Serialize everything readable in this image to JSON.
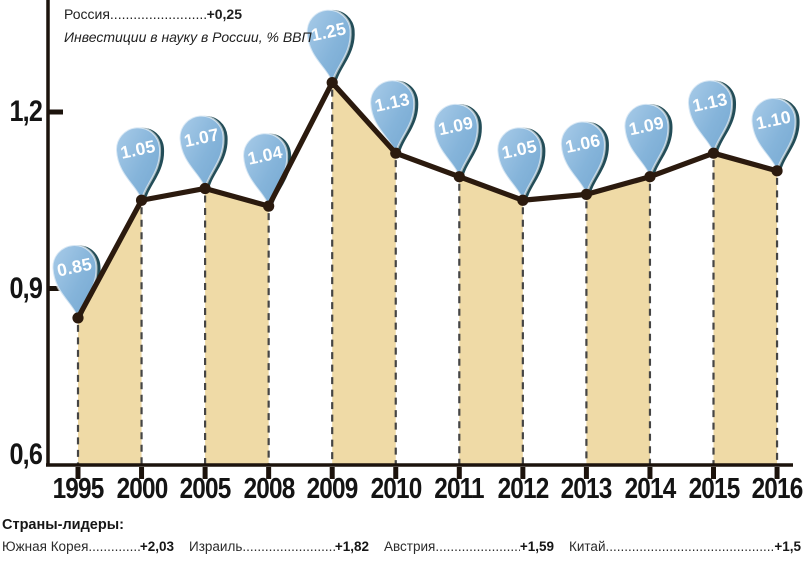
{
  "header": {
    "country_label": "Россия",
    "leader": ".............................................",
    "country_value": "+0,25",
    "subtitle": "Инвестиции в науку в России, % ВВП"
  },
  "leaders": {
    "title": "Страны-лидеры:",
    "items": [
      {
        "label": "Южная Корея",
        "leader": ".............................................",
        "value": "+2,03"
      },
      {
        "label": "Израиль",
        "leader": ".............................................",
        "value": "+1,82"
      },
      {
        "label": "Австрия",
        "leader": ".............................................",
        "value": "+1,59"
      },
      {
        "label": "Китай",
        "leader": ".............................................",
        "value": "+1,5"
      }
    ]
  },
  "chart_data": {
    "type": "area-line",
    "title": "Россия +0,25",
    "subtitle": "Инвестиции в науку в России, % ВВП",
    "xlabel": "",
    "ylabel": "% ВВП",
    "categories": [
      "1995",
      "2000",
      "2005",
      "2008",
      "2009",
      "2010",
      "2011",
      "2012",
      "2013",
      "2014",
      "2015",
      "2016"
    ],
    "values": [
      0.85,
      1.05,
      1.07,
      1.04,
      1.25,
      1.13,
      1.09,
      1.05,
      1.06,
      1.09,
      1.13,
      1.1
    ],
    "point_labels": [
      "0.85",
      "1.05",
      "1.07",
      "1.04",
      "1.25",
      "1.13",
      "1.09",
      "1.05",
      "1.06",
      "1.09",
      "1.13",
      "1.10"
    ],
    "y_ticks": [
      {
        "label": "1,2",
        "value": 1.2
      },
      {
        "label": "0,9",
        "value": 0.9
      },
      {
        "label": "0,6",
        "value": 0.6
      }
    ],
    "ylim": [
      0.6,
      1.32
    ],
    "grid": false,
    "legend": false,
    "filled_segments": [
      0,
      2,
      4,
      6,
      8,
      10
    ],
    "colors": {
      "pin_blue": "#85b4da",
      "pin_blue_light": "#a9cce9",
      "pin_blue_dark": "#74a7d0",
      "pin_shadow": "#17434f",
      "pin_text": "#ffffff",
      "area_fill": "#efdaa6",
      "line": "#2b1a0e",
      "dash": "#454545",
      "axis": "#1c130c",
      "label_text": "#141414"
    }
  }
}
